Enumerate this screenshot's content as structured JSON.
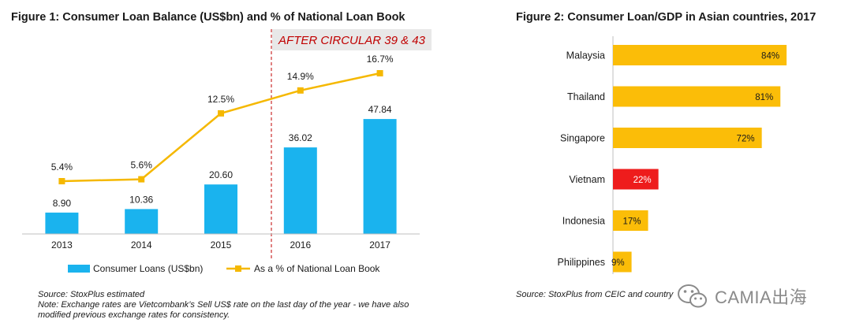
{
  "figure1": {
    "title": "Figure 1: Consumer Loan Balance (US$bn) and % of National Loan Book",
    "annotation": "AFTER CIRCULAR 39 & 43",
    "source": "Source: StoxPlus estimated",
    "note_line1": "Note: Exchange rates are Vietcombank’s Sell US$ rate on the last day of the year - we have also",
    "note_line2": "modified previous exchange rates for consistency."
  },
  "figure2": {
    "title": "Figure 2: Consumer Loan/GDP in Asian countries, 2017",
    "source": "Source: StoxPlus from CEIC and country"
  },
  "watermark": {
    "text": "CAMIA出海"
  },
  "colors": {
    "bar_blue": "#1ab3ee",
    "line_gold": "#f5b800",
    "bar_gold": "#fbbd08",
    "bar_red": "#ee1c1c",
    "annotation_red": "#c00000",
    "annotation_bg": "#e8e8e8"
  },
  "chart_data": [
    {
      "type": "bar",
      "categories": [
        "2013",
        "2014",
        "2015",
        "2016",
        "2017"
      ],
      "series": [
        {
          "name": "Consumer Loans (US$bn)",
          "type": "bar",
          "values": [
            8.9,
            10.36,
            20.6,
            36.02,
            47.84
          ],
          "labels": [
            "8.90",
            "10.36",
            "20.60",
            "36.02",
            "47.84"
          ]
        },
        {
          "name": "As a % of National Loan Book",
          "type": "line",
          "values": [
            5.4,
            5.6,
            12.5,
            14.9,
            16.7
          ],
          "labels": [
            "5.4%",
            "5.6%",
            "12.5%",
            "14.9%",
            "16.7%"
          ]
        }
      ],
      "divider_between": [
        "2015",
        "2016"
      ],
      "legend": "bottom",
      "grid": false
    },
    {
      "type": "bar",
      "orientation": "horizontal",
      "categories": [
        "Malaysia",
        "Thailand",
        "Singapore",
        "Vietnam",
        "Indonesia",
        "Philippines"
      ],
      "values": [
        84,
        81,
        72,
        22,
        17,
        9
      ],
      "labels": [
        "84%",
        "81%",
        "72%",
        "22%",
        "17%",
        "9%"
      ],
      "highlight": "Vietnam",
      "xlim": [
        0,
        100
      ],
      "grid": false
    }
  ]
}
